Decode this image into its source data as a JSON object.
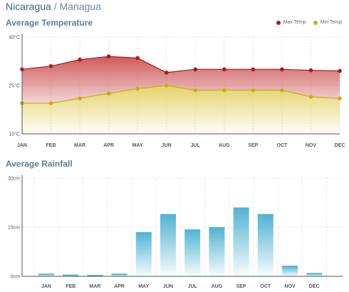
{
  "header": {
    "country": "Nicaragua",
    "separator": "/",
    "city": "Managua"
  },
  "colors": {
    "max_temp": "#a51d1d",
    "min_temp": "#c9ad12",
    "max_area": "#cf5a5a",
    "min_area": "#e5d26a",
    "rain_bar": "#4fb3d3",
    "title": "#5a7f97"
  },
  "chart_data": [
    {
      "type": "area",
      "title": "Average Temperature",
      "categories": [
        "JAN",
        "FEB",
        "MAR",
        "APR",
        "MAY",
        "JUN",
        "JUL",
        "AUG",
        "SEP",
        "OCT",
        "NOV",
        "DEC"
      ],
      "series": [
        {
          "name": "Max Temp",
          "values": [
            30,
            31,
            33,
            34,
            33.5,
            29,
            30,
            30,
            30,
            30,
            29.7,
            29.5
          ]
        },
        {
          "name": "Min Temp",
          "values": [
            19.5,
            19.5,
            21,
            22.5,
            24,
            25,
            23.5,
            23.5,
            23.5,
            23.5,
            21.5,
            21
          ]
        }
      ],
      "ylim": [
        10,
        40
      ],
      "yticks": [
        {
          "value": 10,
          "label": "10°C"
        },
        {
          "value": 25,
          "label": "25°C"
        },
        {
          "value": 40,
          "label": "40°C"
        }
      ],
      "grid": true,
      "legend": "top-right"
    },
    {
      "type": "bar",
      "title": "Average Rainfall",
      "categories": [
        "JAN",
        "FEB",
        "MAR",
        "APR",
        "MAY",
        "JUN",
        "JUL",
        "AUG",
        "SEP",
        "OCT",
        "NOV",
        "DEC"
      ],
      "values": [
        0.8,
        0.5,
        0.4,
        0.8,
        13.5,
        19,
        14.3,
        15,
        21,
        19,
        3.2,
        1
      ],
      "ylim": [
        0,
        30
      ],
      "yticks": [
        {
          "value": 0,
          "label": "0cm"
        },
        {
          "value": 15,
          "label": "15cm"
        },
        {
          "value": 30,
          "label": "30cm"
        }
      ],
      "grid": true
    }
  ]
}
